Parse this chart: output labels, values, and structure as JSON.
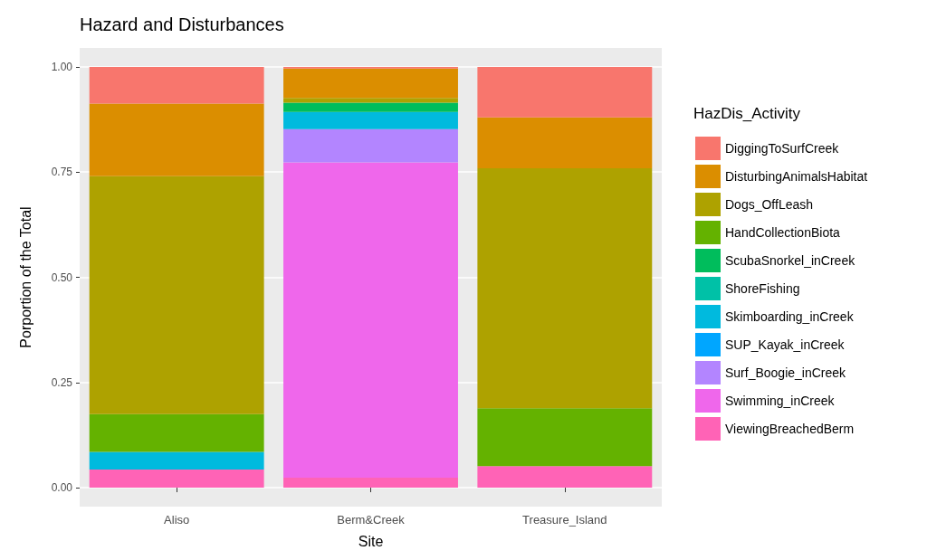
{
  "chart_data": {
    "type": "bar",
    "stacked": true,
    "title": "Hazard and Disturbances",
    "xlabel": "Site",
    "ylabel": "Porportion of the Total",
    "legend_title": "HazDis_Activity",
    "legend": "right",
    "grid": "y",
    "categories": [
      "Aliso",
      "Berm&Creek",
      "Treasure_Island"
    ],
    "ylim": [
      -0.045,
      1.045
    ],
    "yticks": [
      {
        "value": 0,
        "label": "0.00"
      },
      {
        "value": 0.25,
        "label": "0.25"
      },
      {
        "value": 0.5,
        "label": "0.50"
      },
      {
        "value": 0.75,
        "label": "0.75"
      },
      {
        "value": 1,
        "label": "1.00"
      }
    ],
    "series": [
      {
        "name": "ViewingBreachedBerm",
        "color": "#ff63b6",
        "values": [
          0.043,
          0.024,
          0.051
        ]
      },
      {
        "name": "Swimming_inCreek",
        "color": "#ef67eb",
        "values": [
          null,
          0.749,
          null
        ]
      },
      {
        "name": "Surf_Boogie_inCreek",
        "color": "#b385ff",
        "values": [
          null,
          0.079,
          null
        ]
      },
      {
        "name": "SUP_Kayak_inCreek",
        "color": "#00a6ff",
        "values": [
          null,
          null,
          null
        ]
      },
      {
        "name": "Skimboarding_inCreek",
        "color": "#00bade",
        "values": [
          0.042,
          0.041,
          null
        ]
      },
      {
        "name": "ShoreFishing",
        "color": "#00c1a7",
        "values": [
          null,
          null,
          null
        ]
      },
      {
        "name": "ScubaSnorkel_inCreek",
        "color": "#00bd5c",
        "values": [
          null,
          0.022,
          null
        ]
      },
      {
        "name": "HandCollectionBiota",
        "color": "#64b200",
        "values": [
          0.09,
          null,
          0.138
        ]
      },
      {
        "name": "Dogs_OffLeash",
        "color": "#aea200",
        "values": [
          0.565,
          0.011,
          0.57
        ]
      },
      {
        "name": "DisturbingAnimalsHabitat",
        "color": "#db8e00",
        "values": [
          0.173,
          0.07,
          0.121
        ]
      },
      {
        "name": "DiggingToSurfCreek",
        "color": "#f8766d",
        "values": [
          0.087,
          0.004,
          0.12
        ]
      }
    ]
  }
}
